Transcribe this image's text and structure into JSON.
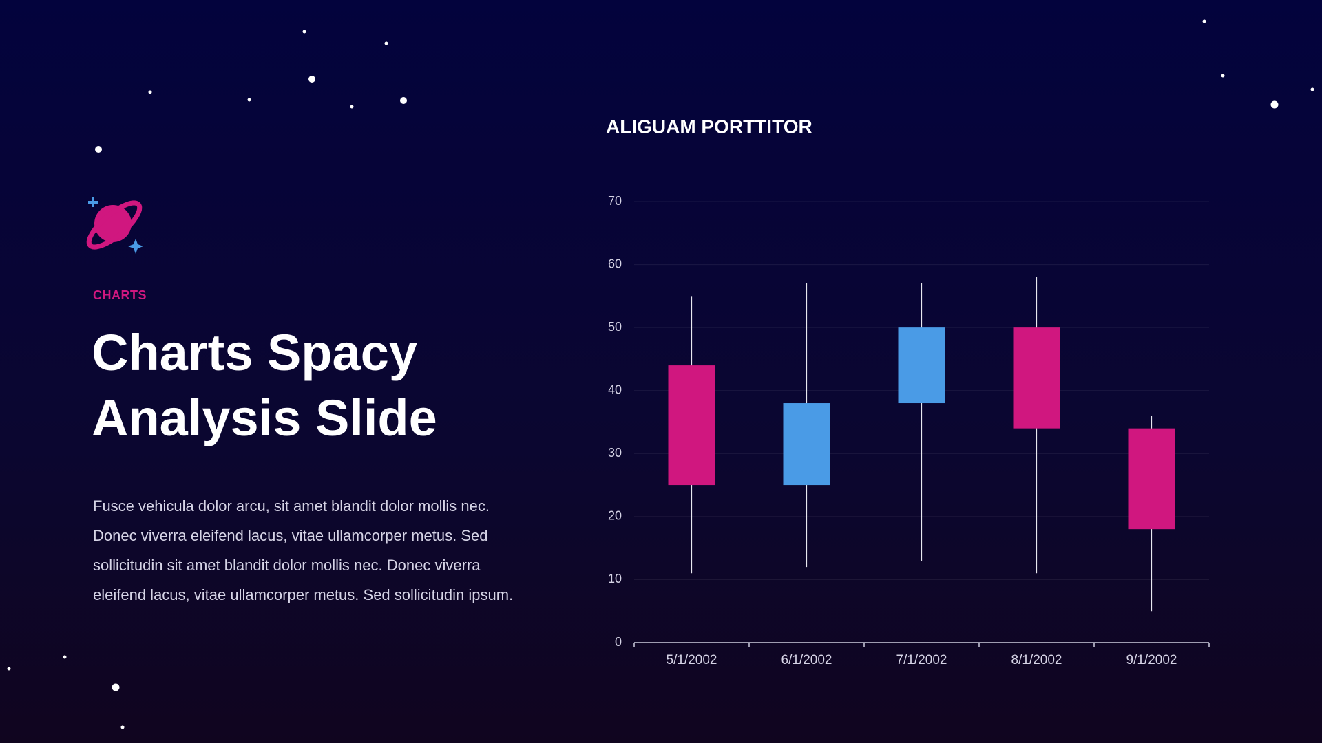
{
  "eyebrow": "CHARTS",
  "heading": "Charts Spacy Analysis Slide",
  "paragraph": "Fusce vehicula dolor arcu, sit amet blandit dolor mollis nec. Donec viverra eleifend lacus, vitae ullamcorper metus. Sed sollicitudin sit amet blandit dolor mollis nec. Donec viverra eleifend lacus, vitae ullamcorper metus. Sed sollicitudin ipsum.",
  "chart_data": {
    "type": "candlestick",
    "title": "ALIGUAM PORTTITOR",
    "categories": [
      "5/1/2002",
      "6/1/2002",
      "7/1/2002",
      "8/1/2002",
      "9/1/2002"
    ],
    "open": [
      44,
      25,
      38,
      50,
      34
    ],
    "high": [
      55,
      57,
      57,
      58,
      36
    ],
    "low": [
      11,
      12,
      13,
      11,
      5
    ],
    "close": [
      25,
      38,
      50,
      34,
      18
    ],
    "up_color": "#4a9be6",
    "down_color": "#d0177f",
    "ylim": [
      0,
      70
    ],
    "yticks": [
      0,
      10,
      20,
      30,
      40,
      50,
      60,
      70
    ],
    "grid": true
  }
}
